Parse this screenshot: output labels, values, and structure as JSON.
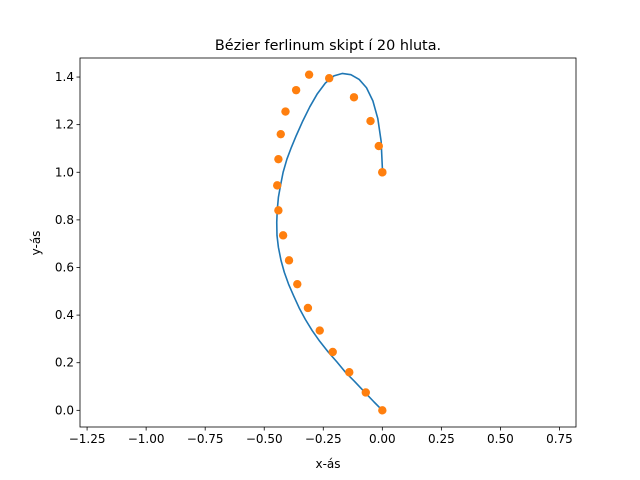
{
  "chart_data": {
    "type": "line",
    "title": "Bézier ferlinum skipt í 20 hluta.",
    "xlabel": "x-ás",
    "ylabel": "y-ás",
    "xlim": [
      -1.28,
      0.82
    ],
    "ylim": [
      -0.07,
      1.48
    ],
    "xticks": [
      -1.25,
      -1.0,
      -0.75,
      -0.5,
      -0.25,
      0.0,
      0.25,
      0.5,
      0.75
    ],
    "xtick_labels": [
      "−1.25",
      "−1.00",
      "−0.75",
      "−0.50",
      "−0.25",
      "0.00",
      "0.25",
      "0.50",
      "0.75"
    ],
    "yticks": [
      0.0,
      0.2,
      0.4,
      0.6,
      0.8,
      1.0,
      1.2,
      1.4
    ],
    "ytick_labels": [
      "0.0",
      "0.2",
      "0.4",
      "0.6",
      "0.8",
      "1.0",
      "1.2",
      "1.4"
    ],
    "grid": false,
    "series": [
      {
        "type": "line",
        "color": "#1f77b4",
        "x": [
          0.0,
          -0.035,
          -0.076,
          -0.116,
          -0.157,
          -0.192,
          -0.23,
          -0.265,
          -0.297,
          -0.326,
          -0.352,
          -0.375,
          -0.397,
          -0.415,
          -0.429,
          -0.44,
          -0.446,
          -0.447,
          -0.445,
          -0.44,
          -0.431,
          -0.42,
          -0.404,
          -0.385,
          -0.364,
          -0.337,
          -0.307,
          -0.275,
          -0.241,
          -0.205,
          -0.17,
          -0.133,
          -0.098,
          -0.067,
          -0.04,
          -0.019,
          -0.005,
          0.001
        ],
        "y": [
          0.0,
          0.035,
          0.078,
          0.12,
          0.161,
          0.203,
          0.246,
          0.29,
          0.335,
          0.382,
          0.43,
          0.48,
          0.53,
          0.58,
          0.63,
          0.685,
          0.735,
          0.79,
          0.84,
          0.895,
          0.945,
          1.0,
          1.055,
          1.105,
          1.155,
          1.215,
          1.275,
          1.33,
          1.375,
          1.405,
          1.415,
          1.41,
          1.39,
          1.355,
          1.3,
          1.225,
          1.13,
          1.0
        ]
      },
      {
        "type": "scatter",
        "color": "#ff7f0e",
        "x": [
          0.0,
          -0.07,
          -0.14,
          -0.21,
          -0.265,
          -0.315,
          -0.36,
          -0.395,
          -0.42,
          -0.44,
          -0.445,
          -0.44,
          -0.43,
          -0.41,
          -0.365,
          -0.31,
          -0.225,
          -0.12,
          -0.05,
          -0.015,
          0.0,
          0.0
        ],
        "y": [
          0.0,
          0.075,
          0.16,
          0.245,
          0.335,
          0.43,
          0.53,
          0.63,
          0.735,
          0.84,
          0.945,
          1.055,
          1.16,
          1.255,
          1.345,
          1.41,
          1.395,
          1.315,
          1.215,
          1.11,
          1.0,
          1.0
        ]
      }
    ]
  }
}
